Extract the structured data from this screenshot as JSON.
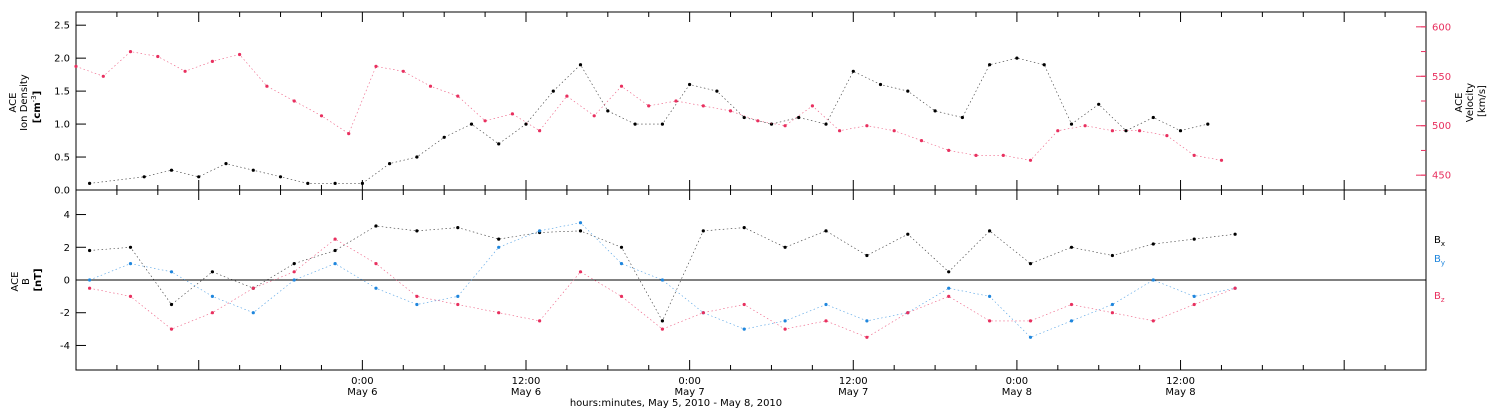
{
  "colors": {
    "black": "#000000",
    "red": "#e8305f",
    "blue": "#1f86dd"
  },
  "time_axis": {
    "tick_labels": [
      {
        "time": "0:00",
        "date": "May 6"
      },
      {
        "time": "12:00",
        "date": "May 6"
      },
      {
        "time": "0:00",
        "date": "May 7"
      },
      {
        "time": "12:00",
        "date": "May 7"
      },
      {
        "time": "0:00",
        "date": "May 8"
      },
      {
        "time": "12:00",
        "date": "May 8"
      }
    ],
    "xlabel": "hours:minutes, May  5, 2010 - May  8, 2010"
  },
  "chart_data": [
    {
      "type": "scatter",
      "panel": "top",
      "ylabel_left": [
        "ACE",
        "Ion Density",
        "[cm",
        "-3",
        "]"
      ],
      "ylabel_right": [
        "ACE",
        "Velocity",
        "[km/s]"
      ],
      "ylim_left": [
        0,
        2.7
      ],
      "left_ticks": [
        "0.0",
        "0.5",
        "1.0",
        "1.5",
        "2.0",
        "2.5"
      ],
      "ylim_right": [
        435,
        615
      ],
      "right_ticks": [
        "450",
        "500",
        "550",
        "600"
      ],
      "xlim_hours": [
        -21,
        78
      ],
      "series": [
        {
          "color": "black",
          "axis": "left",
          "x_hours": [
            -20,
            -16,
            -14,
            -12,
            -10,
            -8,
            -6,
            -4,
            -2,
            0,
            2,
            4,
            6,
            8,
            10,
            12,
            14,
            16,
            18,
            20,
            22,
            24,
            26,
            28,
            30,
            32,
            34,
            36,
            38,
            40,
            42,
            44,
            46,
            48,
            50,
            52,
            54,
            56,
            58,
            60,
            62
          ],
          "values": [
            0.1,
            0.2,
            0.3,
            0.2,
            0.4,
            0.3,
            0.2,
            0.1,
            0.1,
            0.1,
            0.4,
            0.5,
            0.8,
            1.0,
            0.7,
            1.0,
            1.5,
            1.9,
            1.2,
            1.0,
            1.0,
            1.6,
            1.5,
            1.1,
            1.0,
            1.1,
            1.0,
            1.8,
            1.6,
            1.5,
            1.2,
            1.1,
            1.9,
            2.0,
            1.9,
            1.0,
            1.3,
            0.9,
            1.1,
            0.9,
            1.0
          ]
        },
        {
          "color": "red",
          "axis": "right",
          "x_hours": [
            -21,
            -19,
            -17,
            -15,
            -13,
            -11,
            -9,
            -7,
            -5,
            -3,
            -1,
            1,
            3,
            5,
            7,
            9,
            11,
            13,
            15,
            17,
            19,
            21,
            23,
            25,
            27,
            29,
            31,
            33,
            35,
            37,
            39,
            41,
            43,
            45,
            47,
            49,
            51,
            53,
            55,
            57,
            59,
            61,
            63
          ],
          "values": [
            560,
            550,
            575,
            570,
            555,
            565,
            572,
            540,
            525,
            510,
            492,
            560,
            555,
            540,
            530,
            505,
            512,
            495,
            530,
            510,
            540,
            520,
            525,
            520,
            515,
            505,
            500,
            520,
            495,
            500,
            495,
            485,
            475,
            470,
            470,
            465,
            495,
            500,
            495,
            495,
            490,
            470,
            465
          ]
        }
      ]
    },
    {
      "type": "scatter",
      "panel": "bottom",
      "ylabel_left": [
        "ACE",
        "B",
        "[nT]"
      ],
      "ylim": [
        -5.5,
        5.5
      ],
      "ticks": [
        "-4",
        "-2",
        "0",
        "2",
        "4"
      ],
      "xlim_hours": [
        -21,
        78
      ],
      "series": [
        {
          "name": "B",
          "subscript": "x",
          "color": "black",
          "x_hours": [
            -20,
            -17,
            -14,
            -11,
            -8,
            -5,
            -2,
            1,
            4,
            7,
            10,
            13,
            16,
            19,
            22,
            25,
            28,
            31,
            34,
            37,
            40,
            43,
            46,
            49,
            52,
            55,
            58,
            61,
            64
          ],
          "values": [
            1.8,
            2.0,
            -1.5,
            0.5,
            -0.5,
            1.0,
            1.8,
            3.3,
            3.0,
            3.2,
            2.5,
            2.9,
            3.0,
            2.0,
            -2.5,
            3.0,
            3.2,
            2.0,
            3.0,
            1.5,
            2.8,
            0.5,
            3.0,
            1.0,
            2.0,
            1.5,
            2.2,
            2.5,
            2.8
          ]
        },
        {
          "name": "B",
          "subscript": "y",
          "color": "blue",
          "x_hours": [
            -20,
            -17,
            -14,
            -11,
            -8,
            -5,
            -2,
            1,
            4,
            7,
            10,
            13,
            16,
            19,
            22,
            25,
            28,
            31,
            34,
            37,
            40,
            43,
            46,
            49,
            52,
            55,
            58,
            61,
            64
          ],
          "values": [
            0.0,
            1.0,
            0.5,
            -1.0,
            -2.0,
            0.0,
            1.0,
            -0.5,
            -1.5,
            -1.0,
            2.0,
            3.0,
            3.5,
            1.0,
            0.0,
            -2.0,
            -3.0,
            -2.5,
            -1.5,
            -2.5,
            -2.0,
            -0.5,
            -1.0,
            -3.5,
            -2.5,
            -1.5,
            0.0,
            -1.0,
            -0.5
          ]
        },
        {
          "name": "B",
          "subscript": "z",
          "color": "red",
          "x_hours": [
            -20,
            -17,
            -14,
            -11,
            -8,
            -5,
            -2,
            1,
            4,
            7,
            10,
            13,
            16,
            19,
            22,
            25,
            28,
            31,
            34,
            37,
            40,
            43,
            46,
            49,
            52,
            55,
            58,
            61,
            64
          ],
          "values": [
            -0.5,
            -1.0,
            -3.0,
            -2.0,
            -0.5,
            0.5,
            2.5,
            1.0,
            -1.0,
            -1.5,
            -2.0,
            -2.5,
            0.5,
            -1.0,
            -3.0,
            -2.0,
            -1.5,
            -3.0,
            -2.5,
            -3.5,
            -2.0,
            -1.0,
            -2.5,
            -2.5,
            -1.5,
            -2.0,
            -2.5,
            -1.5,
            -0.5
          ]
        }
      ]
    }
  ]
}
